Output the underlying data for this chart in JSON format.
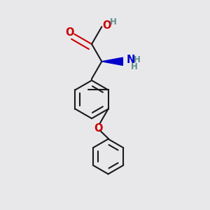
{
  "background_color": "#e8e8eb",
  "bond_color": "#1a1a1a",
  "o_color": "#cc0000",
  "n_color": "#0000cc",
  "h_color": "#5f9090",
  "line_width": 1.5,
  "double_sep": 0.012,
  "font_size_atom": 9.5,
  "font_size_h": 8.5,
  "figsize": [
    3.0,
    3.0
  ],
  "dpi": 100,
  "xlim": [
    0.05,
    0.75
  ],
  "ylim": [
    0.02,
    0.98
  ]
}
